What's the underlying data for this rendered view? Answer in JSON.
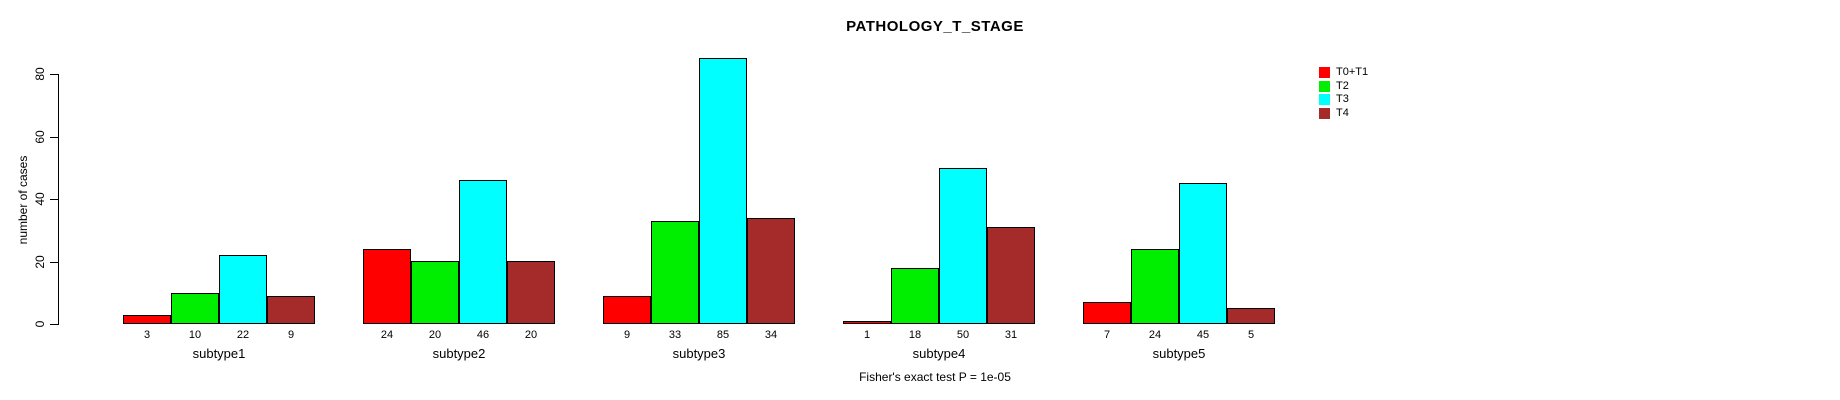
{
  "chart_data": {
    "type": "bar",
    "title": "PATHOLOGY_T_STAGE",
    "xlabel": "",
    "ylabel": "number of cases",
    "ylim": [
      0,
      85
    ],
    "yticks": [
      0,
      20,
      40,
      60,
      80
    ],
    "grid": false,
    "legend_position": "top-right",
    "categories": [
      "subtype1",
      "subtype2",
      "subtype3",
      "subtype4",
      "subtype5"
    ],
    "series": [
      {
        "name": "T0+T1",
        "color": "#FF0000",
        "values": [
          3,
          24,
          9,
          1,
          7
        ]
      },
      {
        "name": "T2",
        "color": "#00EE00",
        "values": [
          10,
          20,
          33,
          18,
          24
        ]
      },
      {
        "name": "T3",
        "color": "#00FFFF",
        "values": [
          22,
          46,
          85,
          50,
          45
        ]
      },
      {
        "name": "T4",
        "color": "#A52A2A",
        "values": [
          9,
          20,
          34,
          31,
          5
        ]
      }
    ],
    "value_labels": [
      [
        3,
        10,
        22,
        9
      ],
      [
        24,
        20,
        46,
        20
      ],
      [
        9,
        33,
        85,
        34
      ],
      [
        1,
        18,
        50,
        31
      ],
      [
        7,
        24,
        45,
        5
      ]
    ],
    "annotation": "Fisher's exact test P = 1e-05"
  }
}
